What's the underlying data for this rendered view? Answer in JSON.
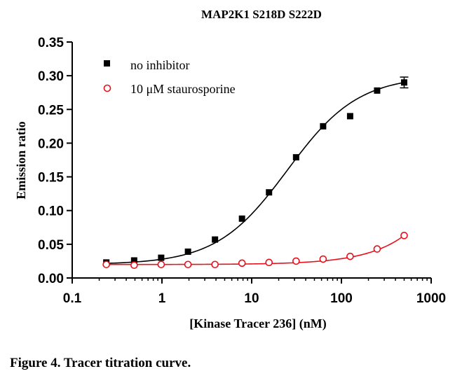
{
  "caption": "Figure 4.  Tracer titration curve.",
  "colors": {
    "no_inhibitor": "#000000",
    "staurosporine": "#e8101a",
    "axis": "#000000"
  },
  "chart_data": {
    "type": "scatter",
    "title": "MAP2K1 S218D S222D",
    "xlabel": "[Kinase Tracer 236] (nM)",
    "ylabel": "Emission ratio",
    "xscale": "log",
    "xlim": [
      0.1,
      1000
    ],
    "ylim": [
      0,
      0.35
    ],
    "xticks": [
      0.1,
      1,
      10,
      100,
      1000
    ],
    "xtick_labels": [
      "0.1",
      "1",
      "10",
      "100",
      "1000"
    ],
    "yticks": [
      0,
      0.05,
      0.1,
      0.15,
      0.2,
      0.25,
      0.3,
      0.35
    ],
    "ytick_labels": [
      "0.00",
      "0.05",
      "0.10",
      "0.15",
      "0.20",
      "0.25",
      "0.30",
      "0.35"
    ],
    "legend_position": "top-left",
    "series": [
      {
        "name": "no inhibitor",
        "marker": "filled-square",
        "x": [
          0.24,
          0.49,
          0.98,
          1.95,
          3.9,
          7.8,
          15.6,
          31.25,
          62.5,
          125,
          250,
          500
        ],
        "y": [
          0.023,
          0.026,
          0.03,
          0.039,
          0.057,
          0.088,
          0.127,
          0.179,
          0.225,
          0.24,
          0.278,
          0.29
        ],
        "error": [
          0,
          0,
          0,
          0,
          0,
          0,
          0,
          0,
          0,
          0,
          0,
          0.008
        ],
        "fit": {
          "bottom": 0.02,
          "top": 0.3,
          "ec50": 25,
          "hill": 1.1
        }
      },
      {
        "name": "10 μM staurosporine",
        "marker": "open-circle",
        "x": [
          0.24,
          0.49,
          0.98,
          1.95,
          3.9,
          7.8,
          15.6,
          31.25,
          62.5,
          125,
          250,
          500
        ],
        "y": [
          0.02,
          0.019,
          0.02,
          0.02,
          0.02,
          0.022,
          0.023,
          0.025,
          0.028,
          0.032,
          0.043,
          0.063
        ],
        "error": [
          0,
          0,
          0,
          0,
          0,
          0,
          0,
          0,
          0,
          0,
          0,
          0
        ],
        "fit": {
          "bottom": 0.02,
          "slope": 8.6e-05
        }
      }
    ]
  }
}
